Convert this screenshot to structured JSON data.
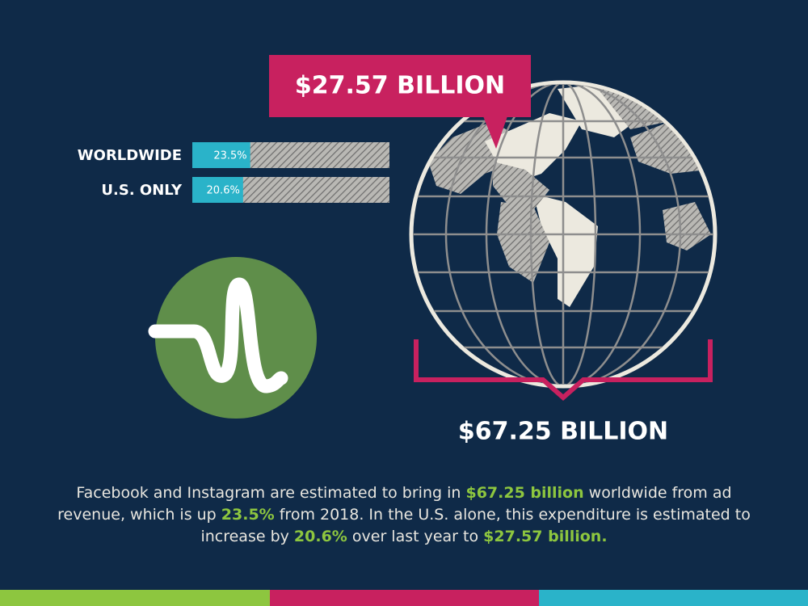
{
  "chart_data": {
    "type": "bar",
    "categories": [
      "WORLDWIDE",
      "U.S. ONLY"
    ],
    "values": [
      23.5,
      20.6
    ],
    "value_labels": [
      "23.5%",
      "20.6%"
    ],
    "color": "#2ab3c9",
    "xlim": [
      0,
      80
    ]
  },
  "callout_us": "$27.57 BILLION",
  "callout_world": "$67.25 BILLION",
  "description": [
    {
      "text": "Facebook and Instagram are estimated to bring in ",
      "emphasis": false
    },
    {
      "text": "$67.25 billion",
      "emphasis": true
    },
    {
      "text": " worldwide from ad revenue, which is up ",
      "emphasis": false
    },
    {
      "text": "23.5%",
      "emphasis": true
    },
    {
      "text": " from 2018. In the U.S. alone, this expenditure is estimated to increase by ",
      "emphasis": false
    },
    {
      "text": "20.6%",
      "emphasis": true
    },
    {
      "text": " over last year to ",
      "emphasis": false
    },
    {
      "text": "$27.57 billion.",
      "emphasis": true
    }
  ]
}
